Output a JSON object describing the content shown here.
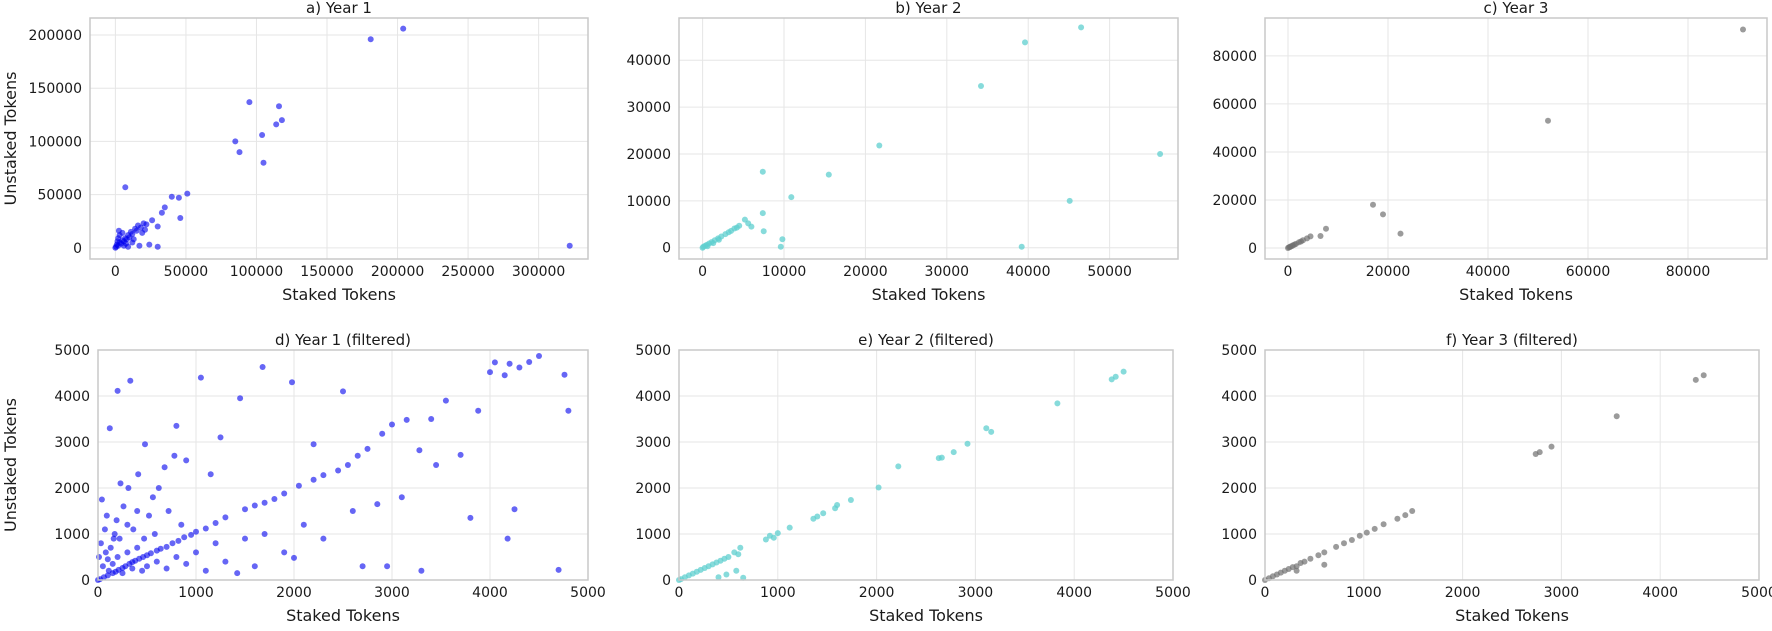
{
  "style": {
    "grid_color": "#e6e6e6",
    "frame_color": "#c8c8c8"
  },
  "chart_data": [
    {
      "type": "scatter",
      "title": "a) Year 1",
      "xlabel": "Staked Tokens",
      "ylabel": "Unstaked Tokens",
      "xlim": [
        -18000,
        335000
      ],
      "ylim": [
        -10500,
        216000
      ],
      "xticks": [
        0,
        50000,
        100000,
        150000,
        200000,
        250000,
        300000
      ],
      "yticks": [
        0,
        50000,
        100000,
        150000,
        200000
      ],
      "grid": true,
      "color": "#0000ee",
      "opacity": 0.6,
      "points": [
        [
          322000,
          2000
        ],
        [
          204000,
          206000
        ],
        [
          181000,
          196000
        ],
        [
          95000,
          137000
        ],
        [
          116000,
          133000
        ],
        [
          118000,
          120000
        ],
        [
          114000,
          116000
        ],
        [
          104000,
          106000
        ],
        [
          85000,
          100000
        ],
        [
          88000,
          90000
        ],
        [
          105000,
          80000
        ],
        [
          7000,
          57000
        ],
        [
          51000,
          51000
        ],
        [
          45000,
          47000
        ],
        [
          40000,
          48000
        ],
        [
          35000,
          38000
        ],
        [
          33000,
          33000
        ],
        [
          46000,
          28000
        ],
        [
          30000,
          20000
        ],
        [
          26000,
          26000
        ],
        [
          22000,
          22000
        ],
        [
          20000,
          23000
        ],
        [
          18000,
          19000
        ],
        [
          16000,
          21000
        ],
        [
          15000,
          16000
        ],
        [
          14000,
          18000
        ],
        [
          12000,
          13000
        ],
        [
          11000,
          15000
        ],
        [
          10000,
          10000
        ],
        [
          9000,
          12000
        ],
        [
          8000,
          8000
        ],
        [
          7000,
          9000
        ],
        [
          6000,
          6000
        ],
        [
          5000,
          7000
        ],
        [
          4000,
          4000
        ],
        [
          3000,
          5000
        ],
        [
          2000,
          2000
        ],
        [
          1000,
          3000
        ],
        [
          500,
          1000
        ],
        [
          0,
          0
        ],
        [
          24000,
          3000
        ],
        [
          30000,
          1000
        ],
        [
          17000,
          2000
        ],
        [
          9000,
          1000
        ],
        [
          3000,
          12000
        ],
        [
          2000,
          9000
        ],
        [
          5000,
          14000
        ],
        [
          1500,
          6000
        ],
        [
          12000,
          5000
        ],
        [
          6000,
          2000
        ],
        [
          19000,
          14000
        ],
        [
          13000,
          8000
        ],
        [
          21000,
          17000
        ],
        [
          2500,
          16000
        ],
        [
          7500,
          4000
        ]
      ]
    },
    {
      "type": "scatter",
      "title": "b) Year 2",
      "xlabel": "Staked Tokens",
      "ylabel": "",
      "xlim": [
        -2900,
        58400
      ],
      "ylim": [
        -2400,
        49000
      ],
      "xticks": [
        0,
        10000,
        20000,
        30000,
        40000,
        50000
      ],
      "yticks": [
        0,
        10000,
        20000,
        30000,
        40000
      ],
      "grid": true,
      "color": "#5fcfcf",
      "opacity": 0.75,
      "points": [
        [
          46500,
          47000
        ],
        [
          39600,
          43800
        ],
        [
          34200,
          34500
        ],
        [
          56200,
          20000
        ],
        [
          21700,
          21800
        ],
        [
          45100,
          10000
        ],
        [
          39200,
          200
        ],
        [
          15500,
          15600
        ],
        [
          7400,
          16200
        ],
        [
          10900,
          10800
        ],
        [
          7400,
          7400
        ],
        [
          7500,
          3500
        ],
        [
          6000,
          4500
        ],
        [
          5200,
          6000
        ],
        [
          4500,
          4700
        ],
        [
          3900,
          4100
        ],
        [
          3200,
          3300
        ],
        [
          2800,
          2900
        ],
        [
          2300,
          2400
        ],
        [
          1900,
          2000
        ],
        [
          1500,
          1600
        ],
        [
          1100,
          1200
        ],
        [
          800,
          900
        ],
        [
          500,
          600
        ],
        [
          300,
          400
        ],
        [
          100,
          200
        ],
        [
          0,
          0
        ],
        [
          9800,
          1800
        ],
        [
          9600,
          200
        ],
        [
          600,
          300
        ],
        [
          1300,
          1000
        ],
        [
          2000,
          1700
        ],
        [
          3500,
          3600
        ],
        [
          4200,
          4300
        ],
        [
          5600,
          5200
        ]
      ]
    },
    {
      "type": "scatter",
      "title": "c) Year 3",
      "xlabel": "Staked Tokens",
      "ylabel": "",
      "xlim": [
        -4600,
        95800
      ],
      "ylim": [
        -4600,
        95800
      ],
      "xticks": [
        0,
        20000,
        40000,
        60000,
        80000
      ],
      "yticks": [
        0,
        20000,
        40000,
        60000,
        80000
      ],
      "grid": true,
      "color": "#707070",
      "opacity": 0.7,
      "points": [
        [
          91000,
          91000
        ],
        [
          52000,
          53000
        ],
        [
          17000,
          18000
        ],
        [
          19000,
          14000
        ],
        [
          22500,
          6000
        ],
        [
          7600,
          8000
        ],
        [
          6500,
          5000
        ],
        [
          4500,
          4800
        ],
        [
          3800,
          4000
        ],
        [
          3000,
          3200
        ],
        [
          2200,
          2400
        ],
        [
          1600,
          1700
        ],
        [
          1000,
          1100
        ],
        [
          500,
          600
        ],
        [
          200,
          300
        ],
        [
          0,
          0
        ],
        [
          2600,
          2700
        ],
        [
          1300,
          1400
        ],
        [
          800,
          800
        ],
        [
          400,
          400
        ]
      ]
    },
    {
      "type": "scatter",
      "title": "d) Year 1 (filtered)",
      "xlabel": "Staked Tokens",
      "ylabel": "Unstaked Tokens",
      "xlim": [
        0,
        5000
      ],
      "ylim": [
        0,
        5000
      ],
      "xticks": [
        0,
        1000,
        2000,
        3000,
        4000,
        5000
      ],
      "yticks": [
        0,
        1000,
        2000,
        3000,
        4000,
        5000
      ],
      "grid": true,
      "color": "#0000ee",
      "opacity": 0.6,
      "points": [
        [
          4800,
          3680
        ],
        [
          4760,
          4460
        ],
        [
          4700,
          220
        ],
        [
          4500,
          4870
        ],
        [
          4400,
          4740
        ],
        [
          4300,
          4620
        ],
        [
          4200,
          4700
        ],
        [
          4150,
          4450
        ],
        [
          4050,
          4730
        ],
        [
          4000,
          4520
        ],
        [
          4250,
          1540
        ],
        [
          4180,
          900
        ],
        [
          3800,
          1350
        ],
        [
          3880,
          3680
        ],
        [
          3700,
          2720
        ],
        [
          3550,
          3900
        ],
        [
          3400,
          3500
        ],
        [
          3450,
          2500
        ],
        [
          3280,
          2820
        ],
        [
          3150,
          3480
        ],
        [
          3000,
          3380
        ],
        [
          2950,
          300
        ],
        [
          2900,
          3180
        ],
        [
          2850,
          1650
        ],
        [
          2750,
          2850
        ],
        [
          2650,
          2700
        ],
        [
          2550,
          2500
        ],
        [
          2500,
          4100
        ],
        [
          2450,
          2380
        ],
        [
          2300,
          2280
        ],
        [
          2200,
          2180
        ],
        [
          2200,
          2950
        ],
        [
          2050,
          2050
        ],
        [
          1980,
          4300
        ],
        [
          2000,
          480
        ],
        [
          1900,
          1880
        ],
        [
          1800,
          1760
        ],
        [
          1700,
          1680
        ],
        [
          1680,
          4630
        ],
        [
          1600,
          1620
        ],
        [
          1500,
          1540
        ],
        [
          1450,
          3950
        ],
        [
          1420,
          150
        ],
        [
          1300,
          1360
        ],
        [
          1250,
          3100
        ],
        [
          1200,
          1240
        ],
        [
          1150,
          2300
        ],
        [
          1100,
          1120
        ],
        [
          1050,
          4400
        ],
        [
          1000,
          1050
        ],
        [
          950,
          980
        ],
        [
          900,
          2600
        ],
        [
          880,
          930
        ],
        [
          820,
          850
        ],
        [
          800,
          3350
        ],
        [
          760,
          800
        ],
        [
          700,
          720
        ],
        [
          680,
          2450
        ],
        [
          640,
          680
        ],
        [
          600,
          640
        ],
        [
          560,
          1800
        ],
        [
          540,
          580
        ],
        [
          500,
          540
        ],
        [
          480,
          2950
        ],
        [
          460,
          500
        ],
        [
          420,
          460
        ],
        [
          400,
          1500
        ],
        [
          380,
          420
        ],
        [
          350,
          390
        ],
        [
          330,
          4330
        ],
        [
          320,
          350
        ],
        [
          300,
          1200
        ],
        [
          280,
          300
        ],
        [
          250,
          260
        ],
        [
          230,
          2100
        ],
        [
          210,
          220
        ],
        [
          200,
          4110
        ],
        [
          180,
          180
        ],
        [
          160,
          900
        ],
        [
          150,
          150
        ],
        [
          120,
          3300
        ],
        [
          100,
          100
        ],
        [
          80,
          600
        ],
        [
          60,
          60
        ],
        [
          40,
          1750
        ],
        [
          20,
          20
        ],
        [
          0,
          0
        ],
        [
          50,
          300
        ],
        [
          100,
          450
        ],
        [
          150,
          350
        ],
        [
          200,
          500
        ],
        [
          250,
          150
        ],
        [
          300,
          600
        ],
        [
          350,
          250
        ],
        [
          400,
          700
        ],
        [
          450,
          200
        ],
        [
          500,
          300
        ],
        [
          600,
          400
        ],
        [
          700,
          250
        ],
        [
          800,
          500
        ],
        [
          900,
          350
        ],
        [
          1000,
          600
        ],
        [
          1100,
          200
        ],
        [
          1200,
          800
        ],
        [
          1300,
          400
        ],
        [
          1500,
          900
        ],
        [
          1600,
          300
        ],
        [
          1700,
          1000
        ],
        [
          1900,
          600
        ],
        [
          2100,
          1200
        ],
        [
          2300,
          900
        ],
        [
          2600,
          1500
        ],
        [
          2700,
          300
        ],
        [
          3100,
          1800
        ],
        [
          3300,
          200
        ],
        [
          10,
          500
        ],
        [
          30,
          800
        ],
        [
          70,
          1100
        ],
        [
          90,
          1400
        ],
        [
          110,
          200
        ],
        [
          130,
          700
        ],
        [
          170,
          1000
        ],
        [
          190,
          1300
        ],
        [
          220,
          900
        ],
        [
          260,
          1600
        ],
        [
          310,
          2000
        ],
        [
          360,
          1100
        ],
        [
          410,
          2300
        ],
        [
          470,
          900
        ],
        [
          520,
          1400
        ],
        [
          580,
          1000
        ],
        [
          620,
          2000
        ],
        [
          720,
          1500
        ],
        [
          780,
          2700
        ],
        [
          850,
          1200
        ]
      ]
    },
    {
      "type": "scatter",
      "title": "e) Year 2 (filtered)",
      "xlabel": "Staked Tokens",
      "ylabel": "",
      "xlim": [
        0,
        5000
      ],
      "ylim": [
        0,
        5000
      ],
      "xticks": [
        0,
        1000,
        2000,
        3000,
        4000,
        5000
      ],
      "yticks": [
        0,
        1000,
        2000,
        3000,
        4000,
        5000
      ],
      "grid": true,
      "color": "#5fcfcf",
      "opacity": 0.75,
      "points": [
        [
          4500,
          4530
        ],
        [
          4420,
          4420
        ],
        [
          4380,
          4360
        ],
        [
          3830,
          3840
        ],
        [
          3160,
          3220
        ],
        [
          3110,
          3300
        ],
        [
          2920,
          2960
        ],
        [
          2780,
          2780
        ],
        [
          2660,
          2660
        ],
        [
          2630,
          2650
        ],
        [
          2220,
          2470
        ],
        [
          2020,
          2010
        ],
        [
          1740,
          1740
        ],
        [
          1600,
          1630
        ],
        [
          1580,
          1560
        ],
        [
          1460,
          1450
        ],
        [
          1400,
          1380
        ],
        [
          1360,
          1330
        ],
        [
          1120,
          1140
        ],
        [
          1000,
          1020
        ],
        [
          960,
          920
        ],
        [
          920,
          960
        ],
        [
          880,
          880
        ],
        [
          620,
          700
        ],
        [
          600,
          560
        ],
        [
          560,
          600
        ],
        [
          580,
          200
        ],
        [
          500,
          500
        ],
        [
          460,
          460
        ],
        [
          420,
          420
        ],
        [
          380,
          380
        ],
        [
          340,
          340
        ],
        [
          300,
          300
        ],
        [
          260,
          260
        ],
        [
          220,
          220
        ],
        [
          180,
          180
        ],
        [
          140,
          140
        ],
        [
          100,
          100
        ],
        [
          60,
          60
        ],
        [
          20,
          20
        ],
        [
          0,
          0
        ],
        [
          650,
          50
        ],
        [
          480,
          120
        ],
        [
          400,
          60
        ]
      ]
    },
    {
      "type": "scatter",
      "title": "f) Year 3 (filtered)",
      "xlabel": "Staked Tokens",
      "ylabel": "",
      "xlim": [
        0,
        5000
      ],
      "ylim": [
        0,
        5000
      ],
      "xticks": [
        0,
        1000,
        2000,
        3000,
        4000,
        5000
      ],
      "yticks": [
        0,
        1000,
        2000,
        3000,
        4000,
        5000
      ],
      "grid": true,
      "color": "#707070",
      "opacity": 0.7,
      "points": [
        [
          4440,
          4450
        ],
        [
          4360,
          4350
        ],
        [
          3560,
          3560
        ],
        [
          2900,
          2900
        ],
        [
          2780,
          2780
        ],
        [
          2740,
          2740
        ],
        [
          1490,
          1500
        ],
        [
          1420,
          1410
        ],
        [
          1340,
          1330
        ],
        [
          1200,
          1210
        ],
        [
          1110,
          1110
        ],
        [
          1030,
          1030
        ],
        [
          960,
          960
        ],
        [
          880,
          870
        ],
        [
          800,
          800
        ],
        [
          720,
          720
        ],
        [
          600,
          600
        ],
        [
          540,
          540
        ],
        [
          600,
          330
        ],
        [
          460,
          460
        ],
        [
          400,
          400
        ],
        [
          360,
          370
        ],
        [
          320,
          300
        ],
        [
          320,
          200
        ],
        [
          280,
          280
        ],
        [
          240,
          240
        ],
        [
          200,
          200
        ],
        [
          160,
          160
        ],
        [
          120,
          120
        ],
        [
          80,
          80
        ],
        [
          40,
          40
        ],
        [
          0,
          0
        ]
      ]
    }
  ]
}
